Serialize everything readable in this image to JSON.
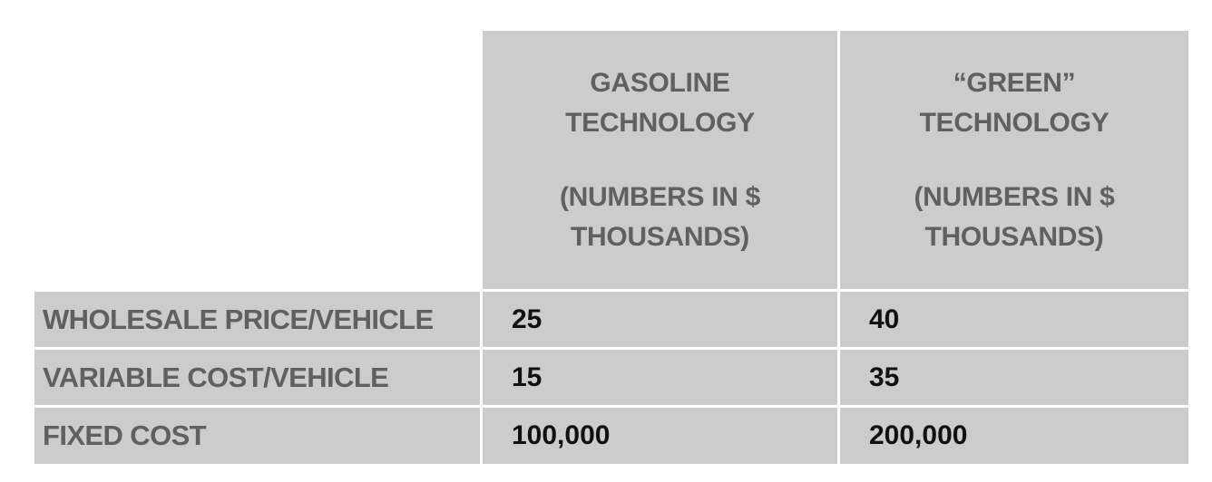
{
  "columns": [
    {
      "title_line1": "GASOLINE",
      "title_line2": "TECHNOLOGY",
      "note_line1": "(NUMBERS IN $",
      "note_line2": "THOUSANDS)"
    },
    {
      "title_line1": "“GREEN”",
      "title_line2": "TECHNOLOGY",
      "note_line1": "(NUMBERS IN $",
      "note_line2": "THOUSANDS)"
    }
  ],
  "rows": [
    {
      "label": "WHOLESALE PRICE/VEHICLE",
      "values": [
        "25",
        "40"
      ]
    },
    {
      "label": "VARIABLE COST/VEHICLE",
      "values": [
        "15",
        "35"
      ]
    },
    {
      "label": "FIXED COST",
      "values": [
        "100,000",
        "200,000"
      ]
    }
  ],
  "colors": {
    "cell_background": "#cccccc",
    "label_text": "#606060",
    "value_text": "#111111",
    "grid_lines": "#ffffff"
  }
}
